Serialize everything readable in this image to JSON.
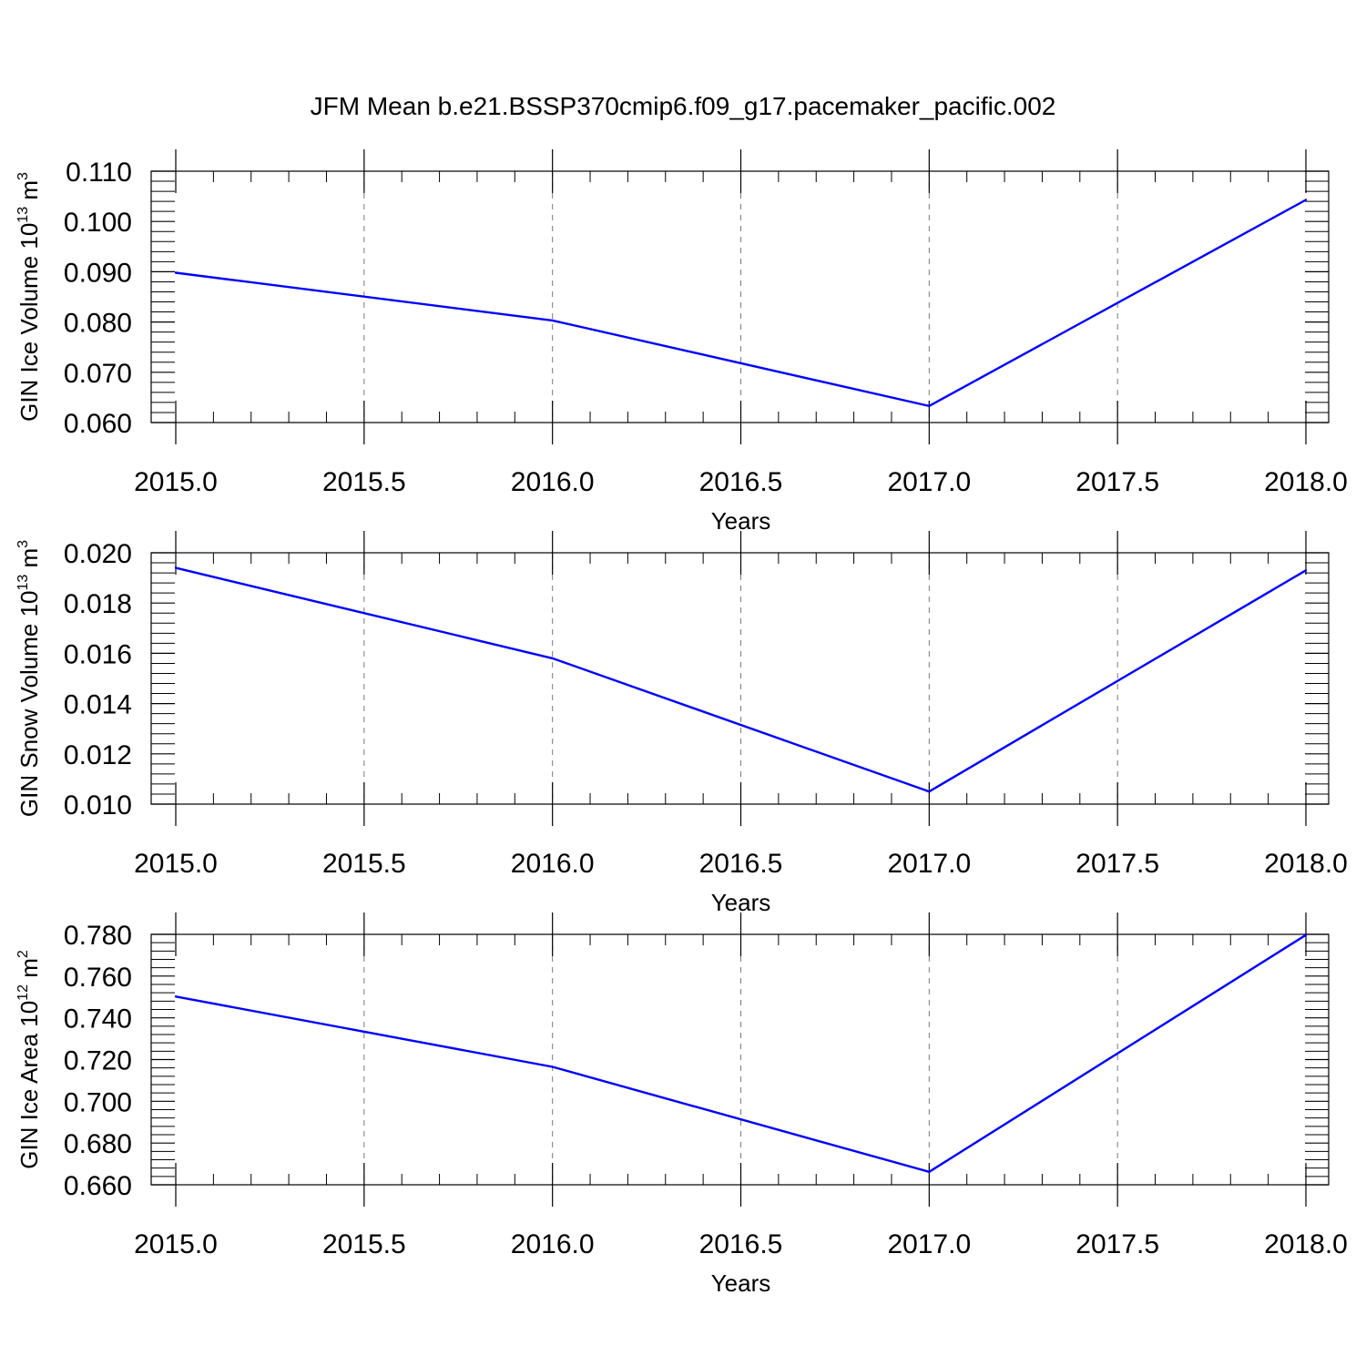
{
  "title": "JFM Mean b.e21.BSSP370cmip6.f09_g17.pacemaker_pacific.002",
  "line_color": "#0000ff",
  "chart_data": [
    {
      "type": "line",
      "xlabel": "Years",
      "ylabel": {
        "text": "GIN Ice Volume 10",
        "exp": "13",
        "unit": " m",
        "unit_exp": "3"
      },
      "x": [
        2015,
        2016,
        2017,
        2018
      ],
      "series": [
        {
          "values": [
            0.0898,
            0.0803,
            0.0633,
            0.1043
          ]
        }
      ],
      "xlim": [
        2015,
        2018
      ],
      "ylim": [
        0.06,
        0.11
      ],
      "xticks": [
        2015.0,
        2015.5,
        2016.0,
        2016.5,
        2017.0,
        2017.5,
        2018.0
      ],
      "xtick_labels": [
        "2015.0",
        "2015.5",
        "2016.0",
        "2016.5",
        "2017.0",
        "2017.5",
        "2018.0"
      ],
      "yticks": [
        0.06,
        0.07,
        0.08,
        0.09,
        0.1,
        0.11
      ],
      "ytick_labels": [
        "0.060",
        "0.070",
        "0.080",
        "0.090",
        "0.100",
        "0.110"
      ],
      "grid": "vertical dashed"
    },
    {
      "type": "line",
      "xlabel": "Years",
      "ylabel": {
        "text": "GIN Snow Volume 10",
        "exp": "13",
        "unit": " m",
        "unit_exp": "3"
      },
      "x": [
        2015,
        2016,
        2017,
        2018
      ],
      "series": [
        {
          "values": [
            0.0194,
            0.0158,
            0.0105,
            0.0193
          ]
        }
      ],
      "xlim": [
        2015,
        2018
      ],
      "ylim": [
        0.01,
        0.02
      ],
      "xticks": [
        2015.0,
        2015.5,
        2016.0,
        2016.5,
        2017.0,
        2017.5,
        2018.0
      ],
      "xtick_labels": [
        "2015.0",
        "2015.5",
        "2016.0",
        "2016.5",
        "2017.0",
        "2017.5",
        "2018.0"
      ],
      "yticks": [
        0.01,
        0.012,
        0.014,
        0.016,
        0.018,
        0.02
      ],
      "ytick_labels": [
        "0.010",
        "0.012",
        "0.014",
        "0.016",
        "0.018",
        "0.020"
      ],
      "grid": "vertical dashed"
    },
    {
      "type": "line",
      "xlabel": "Years",
      "ylabel": {
        "text": "GIN Ice Area 10",
        "exp": "12",
        "unit": " m",
        "unit_exp": "2"
      },
      "x": [
        2015,
        2016,
        2017,
        2018
      ],
      "series": [
        {
          "values": [
            0.7502,
            0.7165,
            0.6662,
            0.7797
          ]
        }
      ],
      "xlim": [
        2015,
        2018
      ],
      "ylim": [
        0.66,
        0.78
      ],
      "xticks": [
        2015.0,
        2015.5,
        2016.0,
        2016.5,
        2017.0,
        2017.5,
        2018.0
      ],
      "xtick_labels": [
        "2015.0",
        "2015.5",
        "2016.0",
        "2016.5",
        "2017.0",
        "2017.5",
        "2018.0"
      ],
      "yticks": [
        0.66,
        0.68,
        0.7,
        0.72,
        0.74,
        0.76,
        0.78
      ],
      "ytick_labels": [
        "0.660",
        "0.680",
        "0.700",
        "0.720",
        "0.740",
        "0.760",
        "0.780"
      ],
      "grid": "vertical dashed"
    }
  ]
}
